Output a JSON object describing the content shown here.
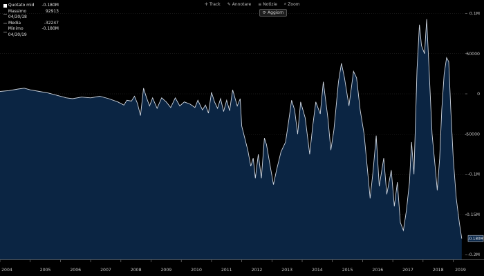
{
  "toolbar": {
    "track": "Track",
    "annotate": "Annotare",
    "news": "Notizie",
    "zoom": "Zoom",
    "update": "Aggiorn"
  },
  "legend": [
    {
      "label": "Quotato mid",
      "value": "-0.180M"
    },
    {
      "label": "Massimo 04/30/18",
      "value": "92913"
    },
    {
      "label": "Media",
      "value": "-32247"
    },
    {
      "label": "Minimo 04/30/19",
      "value": "-0.180M"
    }
  ],
  "current_label": "-0.180M",
  "colors": {
    "fill": "#0b2543",
    "line": "#cfd6e0",
    "background": "#000000",
    "grid": "#2e2e2e"
  },
  "chart_data": {
    "type": "area",
    "x_ticks": [
      "2004",
      "2005",
      "2006",
      "2007",
      "2008",
      "2009",
      "2010",
      "2011",
      "2012",
      "2013",
      "2014",
      "2015",
      "2016",
      "2017",
      "2018",
      "2019"
    ],
    "y_ticks": [
      {
        "value": 100000,
        "label": "0.1M"
      },
      {
        "value": 50000,
        "label": "50000"
      },
      {
        "value": 0,
        "label": "0"
      },
      {
        "value": -50000,
        "label": "-50000"
      },
      {
        "value": -100000,
        "label": "-0.1M"
      },
      {
        "value": -150000,
        "label": "-0.15M"
      },
      {
        "value": -200000,
        "label": "-0.2M"
      }
    ],
    "ylim": [
      -200000,
      120000
    ],
    "xlim": [
      2004.0,
      2019.4
    ],
    "points": [
      [
        2004.0,
        3000
      ],
      [
        2004.3,
        4000
      ],
      [
        2004.6,
        6000
      ],
      [
        2004.8,
        7000
      ],
      [
        2005.0,
        5000
      ],
      [
        2005.3,
        3000
      ],
      [
        2005.6,
        1000
      ],
      [
        2005.9,
        -2000
      ],
      [
        2006.2,
        -5000
      ],
      [
        2006.4,
        -6000
      ],
      [
        2006.7,
        -4000
      ],
      [
        2007.0,
        -5000
      ],
      [
        2007.3,
        -3000
      ],
      [
        2007.6,
        -6000
      ],
      [
        2007.9,
        -10000
      ],
      [
        2008.1,
        -14000
      ],
      [
        2008.2,
        -8000
      ],
      [
        2008.35,
        -9000
      ],
      [
        2008.45,
        -3000
      ],
      [
        2008.55,
        -12000
      ],
      [
        2008.65,
        -27000
      ],
      [
        2008.75,
        7000
      ],
      [
        2008.85,
        -5000
      ],
      [
        2008.95,
        -15000
      ],
      [
        2009.05,
        -5000
      ],
      [
        2009.2,
        -18000
      ],
      [
        2009.35,
        -5000
      ],
      [
        2009.5,
        -10000
      ],
      [
        2009.65,
        -17000
      ],
      [
        2009.8,
        -5000
      ],
      [
        2009.95,
        -15000
      ],
      [
        2010.1,
        -10000
      ],
      [
        2010.3,
        -13000
      ],
      [
        2010.45,
        -17000
      ],
      [
        2010.55,
        -8000
      ],
      [
        2010.7,
        -20000
      ],
      [
        2010.8,
        -14000
      ],
      [
        2010.9,
        -24000
      ],
      [
        2011.0,
        2000
      ],
      [
        2011.1,
        -10000
      ],
      [
        2011.2,
        -18000
      ],
      [
        2011.3,
        -6000
      ],
      [
        2011.4,
        -22000
      ],
      [
        2011.5,
        -8000
      ],
      [
        2011.6,
        -21000
      ],
      [
        2011.7,
        5000
      ],
      [
        2011.85,
        -15000
      ],
      [
        2011.95,
        -6000
      ],
      [
        2012.0,
        -40000
      ],
      [
        2012.1,
        -55000
      ],
      [
        2012.2,
        -70000
      ],
      [
        2012.3,
        -90000
      ],
      [
        2012.38,
        -80000
      ],
      [
        2012.45,
        -105000
      ],
      [
        2012.55,
        -75000
      ],
      [
        2012.65,
        -105000
      ],
      [
        2012.75,
        -55000
      ],
      [
        2012.82,
        -63000
      ],
      [
        2012.92,
        -85000
      ],
      [
        2013.05,
        -113000
      ],
      [
        2013.15,
        -95000
      ],
      [
        2013.3,
        -72000
      ],
      [
        2013.45,
        -60000
      ],
      [
        2013.55,
        -35000
      ],
      [
        2013.65,
        -8000
      ],
      [
        2013.75,
        -20000
      ],
      [
        2013.85,
        -50000
      ],
      [
        2013.95,
        -10000
      ],
      [
        2014.1,
        -30000
      ],
      [
        2014.25,
        -75000
      ],
      [
        2014.35,
        -40000
      ],
      [
        2014.45,
        -10000
      ],
      [
        2014.6,
        -25000
      ],
      [
        2014.7,
        15000
      ],
      [
        2014.85,
        -30000
      ],
      [
        2014.95,
        -70000
      ],
      [
        2015.05,
        -45000
      ],
      [
        2015.2,
        15000
      ],
      [
        2015.3,
        38000
      ],
      [
        2015.4,
        20000
      ],
      [
        2015.55,
        -15000
      ],
      [
        2015.7,
        28000
      ],
      [
        2015.8,
        20000
      ],
      [
        2015.92,
        -20000
      ],
      [
        2016.05,
        -50000
      ],
      [
        2016.15,
        -90000
      ],
      [
        2016.25,
        -130000
      ],
      [
        2016.35,
        -95000
      ],
      [
        2016.45,
        -52000
      ],
      [
        2016.55,
        -115000
      ],
      [
        2016.7,
        -80000
      ],
      [
        2016.8,
        -125000
      ],
      [
        2016.95,
        -95000
      ],
      [
        2017.05,
        -140000
      ],
      [
        2017.15,
        -110000
      ],
      [
        2017.25,
        -160000
      ],
      [
        2017.35,
        -170000
      ],
      [
        2017.45,
        -145000
      ],
      [
        2017.55,
        -110000
      ],
      [
        2017.62,
        -60000
      ],
      [
        2017.7,
        -100000
      ],
      [
        2017.8,
        30000
      ],
      [
        2017.88,
        86000
      ],
      [
        2017.95,
        60000
      ],
      [
        2018.05,
        50000
      ],
      [
        2018.12,
        92913
      ],
      [
        2018.2,
        30000
      ],
      [
        2018.3,
        -50000
      ],
      [
        2018.4,
        -90000
      ],
      [
        2018.47,
        -120000
      ],
      [
        2018.55,
        -80000
      ],
      [
        2018.62,
        -20000
      ],
      [
        2018.7,
        25000
      ],
      [
        2018.78,
        45000
      ],
      [
        2018.85,
        40000
      ],
      [
        2018.92,
        -20000
      ],
      [
        2019.0,
        -80000
      ],
      [
        2019.1,
        -130000
      ],
      [
        2019.2,
        -160000
      ],
      [
        2019.28,
        -180000
      ]
    ]
  }
}
